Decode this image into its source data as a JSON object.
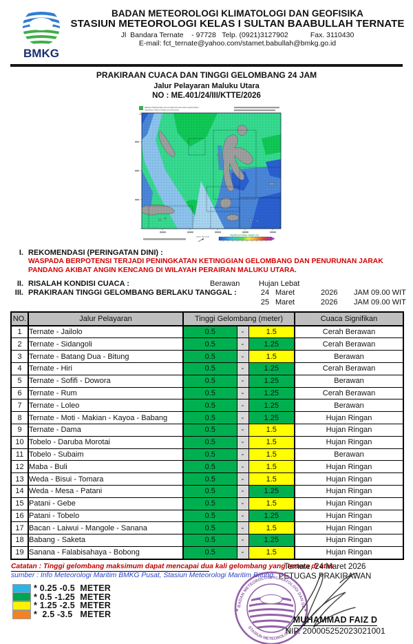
{
  "letterhead": {
    "logo_text": "BMKG",
    "agency": "BADAN METEOROLOGI KLIMATOLOGI DAN GEOFISIKA",
    "station": "STASIUN METEOROLOGI KELAS I SULTAN BAABULLAH TERNATE",
    "address": "Jl  Bandara Ternate    - 97728   Telp. (0921)3127902           Fax. 3110430",
    "email": "E-mail: fct_ternate@yahoo.com/stamet.babullah@bmkg.go.id"
  },
  "title": {
    "line1": "PRAKIRAAN CUACA DAN TINGGI GELOMBANG 24 JAM",
    "line2": "Jalur Pelayaran Maluku Utara",
    "line3": "NO : ME.401/24/III/KTTE/2026"
  },
  "map": {
    "title1": "BADAN METEOROLOGI KLIMATOLOGI DAN GEOFISIKA",
    "title2": "Significant Wave Height and Direction",
    "region": "Maluku Utara",
    "colorbar_label": "Significant Wave Height (m)",
    "wave_dir_label": "wave direction"
  },
  "sections": {
    "rekomendasi": {
      "numeral": "I.",
      "label": "REKOMENDASI (PERINGATAN DINI) :",
      "warning": "WASPADA BERPOTENSI TERJADI PENINGKATAN KETINGGIAN GELOMBANG DAN PENURUNAN JARAK PANDANG AKIBAT ANGIN KENCANG DI WILAYAH PERAIRAN MALUKU UTARA."
    },
    "risalah": {
      "numeral": "II.",
      "label": "RISALAH KONDISI CUACA  :",
      "value1": "Berawan",
      "value2": "Hujan Lebat"
    },
    "prakiraan": {
      "numeral": "III.",
      "label": "PRAKIRAAN TINGGI GELOMBANG BERLAKU TANGGAL :",
      "dates": [
        {
          "day": "24",
          "month": "Maret",
          "year": "2026",
          "time": "JAM 09.00 WIT"
        },
        {
          "day": "25",
          "month": "Maret",
          "year": "2026",
          "time": "JAM 09.00 WIT"
        }
      ]
    }
  },
  "table": {
    "headers": {
      "no": "NO.",
      "route": "Jalur Pelayaran",
      "wave": "Tinggi Gelombang (meter)",
      "weather": "Cuaca Signifikan"
    },
    "dash": "-",
    "colors": {
      "green": "#00b050",
      "yellow": "#ffff00",
      "dash_bg": "#d9d9d9",
      "header_bg": "#bfbfbf"
    },
    "rows": [
      {
        "no": "1",
        "route": "Ternate - Jailolo",
        "min": "0.5",
        "max": "1.5",
        "max_level": "yellow",
        "weather": "Cerah Berawan"
      },
      {
        "no": "2",
        "route": "Ternate - Sidangoli",
        "min": "0.5",
        "max": "1.25",
        "max_level": "green",
        "weather": "Cerah Berawan"
      },
      {
        "no": "3",
        "route": "Ternate - Batang Dua - Bitung",
        "min": "0.5",
        "max": "1.5",
        "max_level": "yellow",
        "weather": "Berawan"
      },
      {
        "no": "4",
        "route": "Ternate - Hiri",
        "min": "0.5",
        "max": "1.25",
        "max_level": "green",
        "weather": "Cerah Berawan"
      },
      {
        "no": "5",
        "route": "Ternate - Sofifi - Dowora",
        "min": "0.5",
        "max": "1.25",
        "max_level": "green",
        "weather": "Berawan"
      },
      {
        "no": "6",
        "route": "Ternate - Rum",
        "min": "0.5",
        "max": "1.25",
        "max_level": "green",
        "weather": "Cerah Berawan"
      },
      {
        "no": "7",
        "route": "Ternate - Loleo",
        "min": "0.5",
        "max": "1.25",
        "max_level": "green",
        "weather": "Berawan"
      },
      {
        "no": "8",
        "route": "Ternate - Moti - Makian - Kayoa - Babang",
        "min": "0.5",
        "max": "1.25",
        "max_level": "green",
        "weather": "Hujan Ringan"
      },
      {
        "no": "9",
        "route": "Ternate - Dama",
        "min": "0.5",
        "max": "1.5",
        "max_level": "yellow",
        "weather": "Hujan Ringan"
      },
      {
        "no": "10",
        "route": "Tobelo - Daruba Morotai",
        "min": "0.5",
        "max": "1.5",
        "max_level": "yellow",
        "weather": "Hujan Ringan"
      },
      {
        "no": "11",
        "route": "Tobelo - Subaim",
        "min": "0.5",
        "max": "1.5",
        "max_level": "yellow",
        "weather": "Berawan"
      },
      {
        "no": "12",
        "route": "Maba - Buli",
        "min": "0.5",
        "max": "1.5",
        "max_level": "yellow",
        "weather": "Hujan Ringan"
      },
      {
        "no": "13",
        "route": "Weda - Bisui - Tomara",
        "min": "0.5",
        "max": "1.5",
        "max_level": "yellow",
        "weather": "Hujan Ringan"
      },
      {
        "no": "14",
        "route": "Weda - Mesa - Patani",
        "min": "0.5",
        "max": "1.25",
        "max_level": "green",
        "weather": "Hujan Ringan"
      },
      {
        "no": "15",
        "route": "Patani - Gebe",
        "min": "0.5",
        "max": "1.5",
        "max_level": "yellow",
        "weather": "Hujan Ringan"
      },
      {
        "no": "16",
        "route": "Patani - Tobelo",
        "min": "0.5",
        "max": "1.25",
        "max_level": "green",
        "weather": "Hujan Ringan"
      },
      {
        "no": "17",
        "route": "Bacan - Laiwui - Mangole - Sanana",
        "min": "0.5",
        "max": "1.5",
        "max_level": "yellow",
        "weather": "Hujan Ringan"
      },
      {
        "no": "18",
        "route": "Babang - Saketa",
        "min": "0.5",
        "max": "1.25",
        "max_level": "green",
        "weather": "Hujan Ringan"
      },
      {
        "no": "19",
        "route": "Sanana - Falabisahaya - Bobong",
        "min": "0.5",
        "max": "1.5",
        "max_level": "yellow",
        "weather": "Hujan Ringan"
      }
    ]
  },
  "note": "Catatan : Tinggi gelombang maksimum dapat mencapai dua kali gelombang yang tertera di atas",
  "source": "sumber : Info Meteorologi Maritim BMKG Pusat,   Stasiun Meteorologi Maritim Bitung",
  "legend": {
    "items": [
      {
        "color": "#29b5e8",
        "label": "* 0.25 -0.5  METER"
      },
      {
        "color": "#00a551",
        "label": "* 0.5 -1.25  METER"
      },
      {
        "color": "#fff200",
        "label": "* 1.25 -2.5  METER"
      },
      {
        "color": "#f58220",
        "label": "*  2.5 -3.5   METER"
      }
    ]
  },
  "signoff": {
    "place_date": "Ternate,  24  Maret 2026",
    "role": "PETUGAS PRAKIRAWAN",
    "name": "MUHAMMAD FAIZ D",
    "nip": "NIP. 200005252023021001",
    "stamp_top": "BADAN METEOROLOGI KLIMATOLOGI DAN GEOFISIKA",
    "stamp_bottom": "STASIUN METEOROLOGI",
    "stamp_color": "#7d3f98"
  }
}
